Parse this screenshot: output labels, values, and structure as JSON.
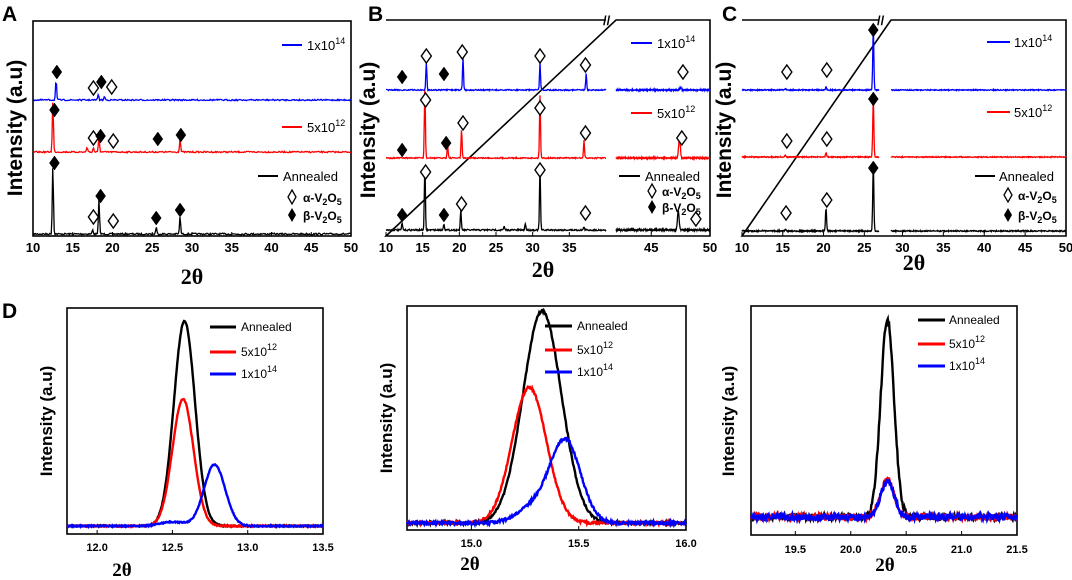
{
  "colors": {
    "annealed": "#000000",
    "5e12": "#ff0000",
    "1e14": "#0000ff"
  },
  "chart_data": [
    {
      "panel": "A",
      "type": "line",
      "xlabel": "2θ",
      "ylabel": "Intensity (a.u)",
      "xlim": [
        10,
        50
      ],
      "xticks": [
        "10",
        "15",
        "20",
        "25",
        "30",
        "35",
        "40",
        "45",
        "50"
      ],
      "series": [
        {
          "name": "Annealed",
          "color": "#000000",
          "peaks": [
            {
              "x": 12.5,
              "h": 1.0
            },
            {
              "x": 18.3,
              "h": 0.5
            },
            {
              "x": 25.5,
              "h": 0.1
            },
            {
              "x": 28.5,
              "h": 0.25
            },
            {
              "x": 17.5,
              "h": 0.06
            }
          ]
        },
        {
          "name": "5x10^12",
          "color": "#ff0000",
          "peaks": [
            {
              "x": 12.5,
              "h": 1.0
            },
            {
              "x": 18.3,
              "h": 0.3
            },
            {
              "x": 28.5,
              "h": 0.25
            },
            {
              "x": 16.8,
              "h": 0.1
            },
            {
              "x": 17.6,
              "h": 0.08
            }
          ]
        },
        {
          "name": "1x10^14",
          "color": "#0000ff",
          "peaks": [
            {
              "x": 12.9,
              "h": 0.7
            },
            {
              "x": 18.2,
              "h": 0.2
            },
            {
              "x": 19.0,
              "h": 0.12
            }
          ]
        }
      ],
      "legend": [
        "1x10",
        "14",
        "5x10",
        "12",
        "Annealed"
      ],
      "marker_legend": [
        {
          "prefix": "α-V",
          "sub1": "2",
          "mid": "O",
          "sub2": "5"
        },
        {
          "prefix": "β-V",
          "sub1": "2",
          "mid": "O",
          "sub2": "5"
        }
      ]
    },
    {
      "panel": "B",
      "type": "line",
      "xlabel": "2θ",
      "ylabel": "Intensity (a.u)",
      "xlim": [
        10,
        50
      ],
      "axis_break": [
        40,
        42
      ],
      "xticks": [
        "10",
        "15",
        "20",
        "25",
        "30",
        "35",
        "45",
        "50"
      ],
      "series": [
        {
          "name": "Annealed",
          "color": "#000000",
          "peaks": [
            {
              "x": 12.2,
              "h": 0.1
            },
            {
              "x": 15.3,
              "h": 1.0
            },
            {
              "x": 17.9,
              "h": 0.1
            },
            {
              "x": 20.2,
              "h": 0.3
            },
            {
              "x": 26.1,
              "h": 0.05
            },
            {
              "x": 29.0,
              "h": 0.1
            },
            {
              "x": 31.0,
              "h": 1.0
            },
            {
              "x": 37.0,
              "h": 0.05
            },
            {
              "x": 47.3,
              "h": 0.3
            }
          ]
        },
        {
          "name": "5x10^12",
          "color": "#ff0000",
          "peaks": [
            {
              "x": 15.3,
              "h": 1.0
            },
            {
              "x": 18.4,
              "h": 0.2
            },
            {
              "x": 20.3,
              "h": 0.4
            },
            {
              "x": 31.0,
              "h": 0.9
            },
            {
              "x": 37.0,
              "h": 0.25
            },
            {
              "x": 47.4,
              "h": 0.3
            }
          ]
        },
        {
          "name": "1x10^14",
          "color": "#0000ff",
          "peaks": [
            {
              "x": 15.5,
              "h": 0.5
            },
            {
              "x": 20.5,
              "h": 0.6
            },
            {
              "x": 31.0,
              "h": 0.5
            },
            {
              "x": 37.3,
              "h": 0.3
            },
            {
              "x": 47.5,
              "h": 0.05
            }
          ]
        }
      ],
      "legend": [
        "1x10",
        "14",
        "5x10",
        "12",
        "Annealed"
      ],
      "marker_legend": [
        {
          "prefix": "α-V",
          "sub1": "2",
          "mid": "O",
          "sub2": "5"
        },
        {
          "prefix": "β-V",
          "sub1": "2",
          "mid": "O",
          "sub2": "5"
        }
      ]
    },
    {
      "panel": "C",
      "type": "line",
      "xlabel": "2θ",
      "ylabel": "Intensity (a.u)",
      "xlim": [
        10,
        50
      ],
      "axis_break": [
        26.8,
        28.6
      ],
      "xticks": [
        "10",
        "15",
        "20",
        "25",
        "30",
        "35",
        "40",
        "45",
        "50"
      ],
      "series": [
        {
          "name": "Annealed",
          "color": "#000000",
          "peaks": [
            {
              "x": 15.3,
              "h": 0.03
            },
            {
              "x": 20.3,
              "h": 0.35
            },
            {
              "x": 26.1,
              "h": 1.0
            }
          ]
        },
        {
          "name": "5x10^12",
          "color": "#ff0000",
          "peaks": [
            {
              "x": 15.3,
              "h": 0.03
            },
            {
              "x": 20.3,
              "h": 0.08
            },
            {
              "x": 26.1,
              "h": 1.0
            }
          ]
        },
        {
          "name": "1x10^14",
          "color": "#0000ff",
          "peaks": [
            {
              "x": 15.3,
              "h": 0.02
            },
            {
              "x": 20.3,
              "h": 0.05
            },
            {
              "x": 26.1,
              "h": 1.0
            }
          ]
        }
      ],
      "legend": [
        "1x10",
        "14",
        "5x10",
        "12",
        "Annealed"
      ],
      "marker_legend": [
        {
          "prefix": "α-V",
          "sub1": "2",
          "mid": "O",
          "sub2": "5"
        },
        {
          "prefix": "β-V",
          "sub1": "2",
          "mid": "O",
          "sub2": "5"
        }
      ]
    },
    {
      "panel": "D1",
      "type": "line",
      "xlabel": "2θ",
      "ylabel": "Intensity (a.u)",
      "xlim": [
        11.8,
        13.5
      ],
      "xticks": [
        "12.0",
        "12.5",
        "13.0",
        "13.5"
      ],
      "series": [
        {
          "name": "Annealed",
          "color": "#000000",
          "peaks": [
            {
              "x": 12.58,
              "h": 1.0,
              "w": 0.07
            }
          ]
        },
        {
          "name": "5x10^12",
          "color": "#ff0000",
          "peaks": [
            {
              "x": 12.57,
              "h": 0.62,
              "w": 0.07
            }
          ]
        },
        {
          "name": "1x10^14",
          "color": "#0000ff",
          "peaks": [
            {
              "x": 12.78,
              "h": 0.3,
              "w": 0.07
            },
            {
              "x": 12.5,
              "h": 0.02,
              "w": 0.08
            }
          ]
        }
      ],
      "legend": [
        "Annealed",
        "5x10",
        "12",
        "1x10",
        "14"
      ]
    },
    {
      "panel": "D2",
      "type": "line",
      "xlabel": "2θ",
      "ylabel": "Intensity (a.u)",
      "xlim": [
        14.7,
        16.0
      ],
      "xticks": [
        "15.0",
        "15.5",
        "16.0"
      ],
      "series": [
        {
          "name": "Annealed",
          "color": "#000000",
          "peaks": [
            {
              "x": 15.33,
              "h": 1.0,
              "w": 0.09
            }
          ]
        },
        {
          "name": "5x10^12",
          "color": "#ff0000",
          "peaks": [
            {
              "x": 15.27,
              "h": 0.64,
              "w": 0.08
            }
          ]
        },
        {
          "name": "1x10^14",
          "color": "#0000ff",
          "peaks": [
            {
              "x": 15.44,
              "h": 0.38,
              "w": 0.07
            },
            {
              "x": 15.3,
              "h": 0.08,
              "w": 0.08
            }
          ]
        }
      ],
      "legend": [
        "Annealed",
        "5x10",
        "12",
        "1x10",
        "14"
      ]
    },
    {
      "panel": "D3",
      "type": "line",
      "xlabel": "2θ",
      "ylabel": "Intensity (a.u)",
      "xlim": [
        19.1,
        21.5
      ],
      "xticks": [
        "19.5",
        "20.0",
        "20.5",
        "21.0",
        "21.5"
      ],
      "series": [
        {
          "name": "Annealed",
          "color": "#000000",
          "peaks": [
            {
              "x": 20.33,
              "h": 1.0,
              "w": 0.06
            }
          ]
        },
        {
          "name": "5x10^12",
          "color": "#ff0000",
          "peaks": [
            {
              "x": 20.33,
              "h": 0.19,
              "w": 0.06
            }
          ]
        },
        {
          "name": "1x10^14",
          "color": "#0000ff",
          "peaks": [
            {
              "x": 20.33,
              "h": 0.18,
              "w": 0.06
            }
          ]
        }
      ],
      "legend": [
        "Annealed",
        "5x10",
        "12",
        "1x10",
        "14"
      ]
    }
  ]
}
